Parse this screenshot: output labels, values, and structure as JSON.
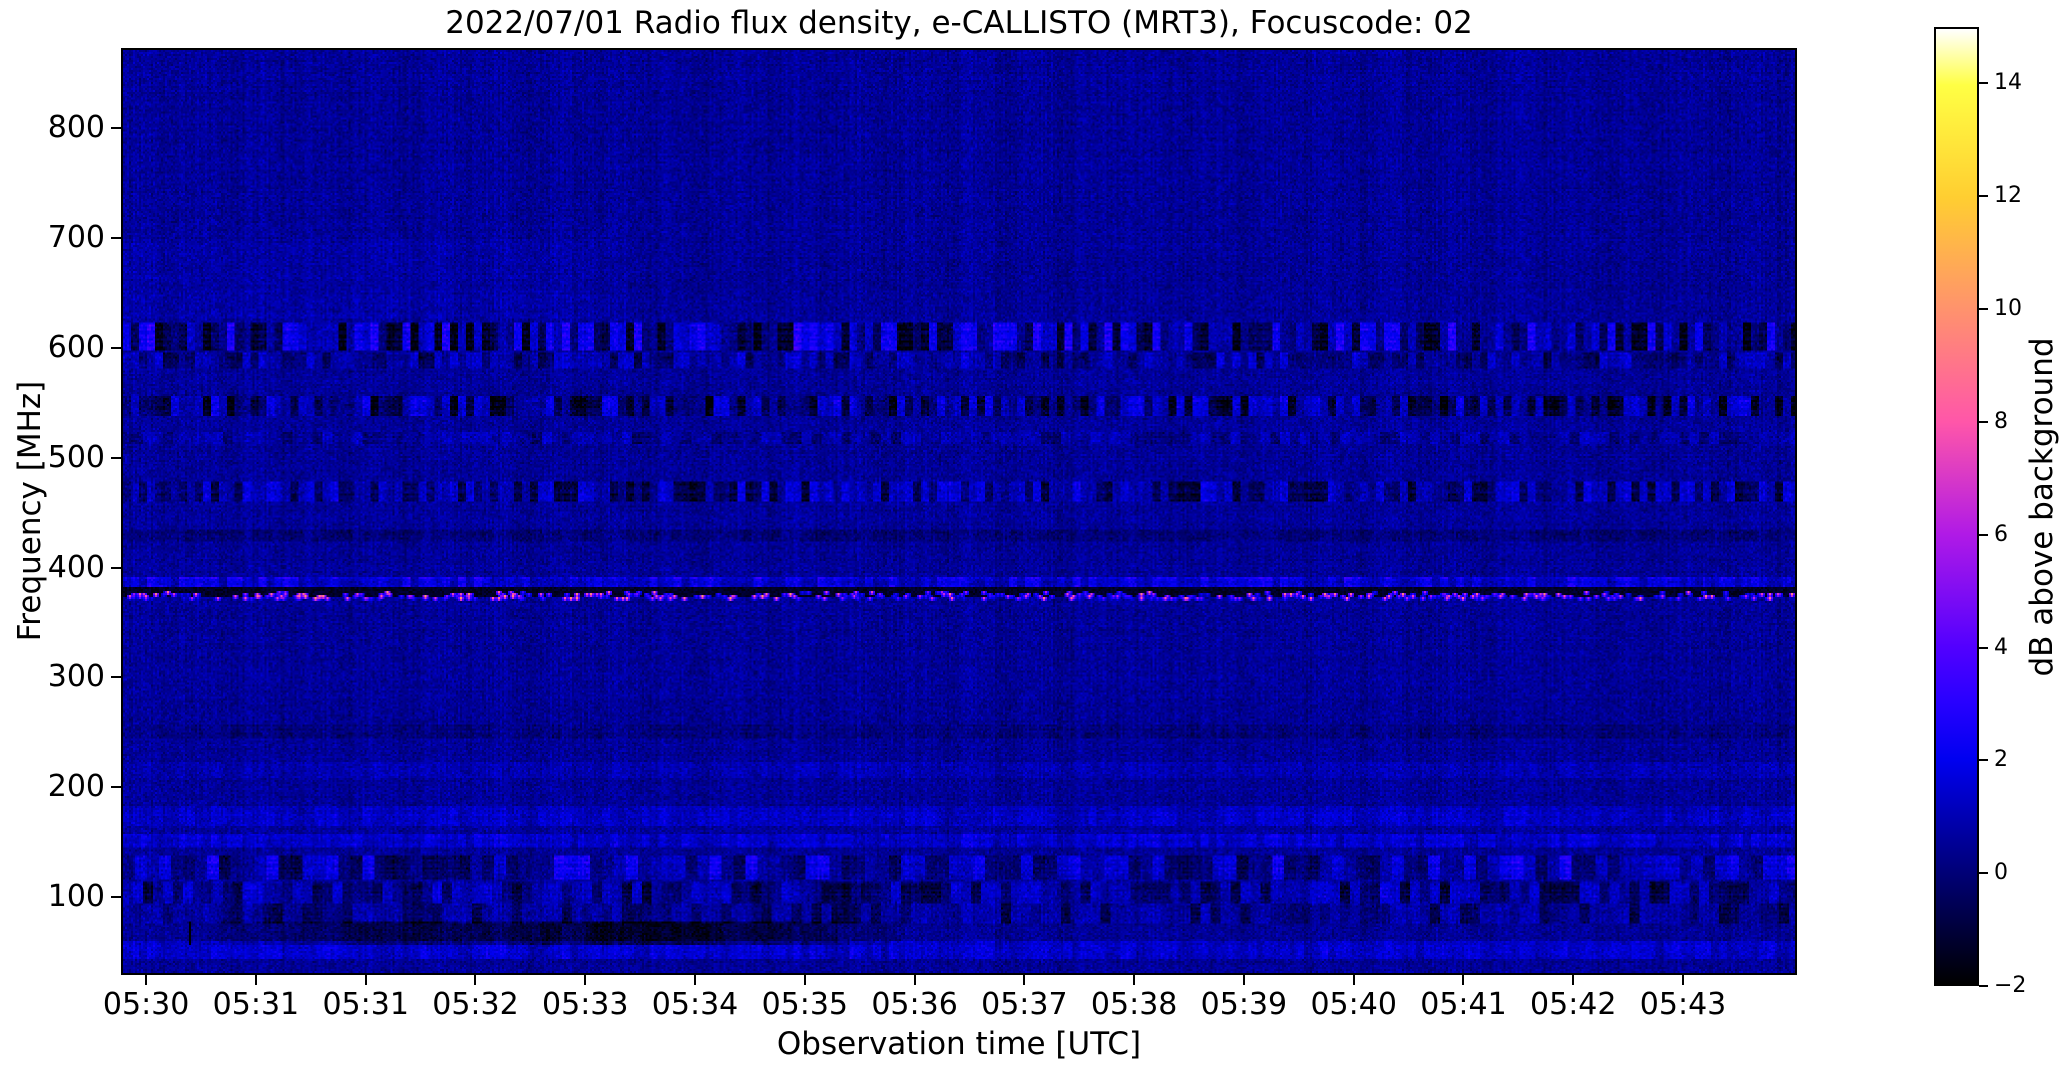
{
  "chart_data": {
    "type": "heatmap",
    "title": "2022/07/01  Radio flux density, e-CALLISTO (MRT3), Focuscode: 02",
    "xlabel": "Observation time [UTC]",
    "ylabel": "Frequency [MHz]",
    "x_tick_labels": [
      "05:30",
      "05:31",
      "05:31",
      "05:32",
      "05:33",
      "05:34",
      "05:35",
      "05:36",
      "05:37",
      "05:38",
      "05:39",
      "05:40",
      "05:41",
      "05:42",
      "05:43"
    ],
    "x_first_tick_frac": 0.015,
    "x_tick_spacing_frac": 0.0655,
    "y_ticks": [
      800,
      700,
      600,
      500,
      400,
      300,
      200,
      100
    ],
    "freq_min": 29,
    "freq_max": 873,
    "grid": false,
    "colorbar": {
      "label": "dB above background",
      "min": -2,
      "max": 15,
      "ticks": [
        {
          "label": "14",
          "value": 14
        },
        {
          "label": "12",
          "value": 12
        },
        {
          "label": "10",
          "value": 10
        },
        {
          "label": "8",
          "value": 8
        },
        {
          "label": "6",
          "value": 6
        },
        {
          "label": "4",
          "value": 4
        },
        {
          "label": "2",
          "value": 2
        },
        {
          "label": "0",
          "value": 0
        },
        {
          "label": "−2",
          "value": -2
        }
      ],
      "colormap_name": "gnuplot2-like",
      "stops": [
        {
          "p": 0.0,
          "c": [
            0,
            0,
            0
          ]
        },
        {
          "p": 0.0588,
          "c": [
            0,
            0,
            60
          ]
        },
        {
          "p": 0.1176,
          "c": [
            0,
            0,
            120
          ]
        },
        {
          "p": 0.1765,
          "c": [
            0,
            0,
            180
          ]
        },
        {
          "p": 0.2353,
          "c": [
            0,
            0,
            240
          ]
        },
        {
          "p": 0.295,
          "c": [
            40,
            0,
            255
          ]
        },
        {
          "p": 0.3529,
          "c": [
            82,
            0,
            255
          ]
        },
        {
          "p": 0.4706,
          "c": [
            176,
            26,
            230
          ]
        },
        {
          "p": 0.5882,
          "c": [
            255,
            86,
            169
          ]
        },
        {
          "p": 0.7059,
          "c": [
            255,
            146,
            109
          ]
        },
        {
          "p": 0.8235,
          "c": [
            255,
            206,
            49
          ]
        },
        {
          "p": 0.9412,
          "c": [
            255,
            255,
            68
          ]
        },
        {
          "p": 1.0,
          "c": [
            255,
            255,
            255
          ]
        }
      ]
    },
    "noise": {
      "mean_db": 0.5,
      "spread_db": 0.85,
      "column_mod_db": 0.25,
      "row_mod_db": 0.22,
      "seed": 20220701
    },
    "bands": [
      {
        "name": "haze-650",
        "f1": 630,
        "f2": 700,
        "type": "bright",
        "amp": 0.22,
        "t1": 0,
        "t2": 0.3,
        "chunk": 6
      },
      {
        "name": "tv-610",
        "f1": 600,
        "f2": 623,
        "type": "segmented",
        "amp": 1.5,
        "dark": 1.5,
        "chunk": 4
      },
      {
        "name": "tv-590",
        "f1": 584,
        "f2": 597,
        "type": "segmented",
        "amp": 0.9,
        "dark": 1.0,
        "chunk": 4
      },
      {
        "name": "tv-548",
        "f1": 540,
        "f2": 557,
        "type": "segmented",
        "amp": 1.1,
        "dark": 1.7,
        "chunk": 4
      },
      {
        "name": "faint-519",
        "f1": 514,
        "f2": 524,
        "type": "segmented",
        "amp": 0.45,
        "dark": 0.5,
        "chunk": 5
      },
      {
        "name": "tv-470",
        "f1": 462,
        "f2": 479,
        "type": "segmented",
        "amp": 0.85,
        "dark": 1.2,
        "chunk": 4
      },
      {
        "name": "dark-430",
        "f1": 425,
        "f2": 434,
        "type": "dark",
        "amp": 0.5,
        "chunk": 5
      },
      {
        "name": "bright-387",
        "f1": 383,
        "f2": 391,
        "type": "brightline",
        "amp": 1.3,
        "chunk": 4
      },
      {
        "name": "lane-378",
        "f1": 374,
        "f2": 382,
        "type": "blacklane",
        "amp": 2.0
      },
      {
        "name": "dark-251",
        "f1": 246,
        "f2": 257,
        "type": "dark",
        "amp": 0.45,
        "chunk": 5
      },
      {
        "name": "bright-215",
        "f1": 209,
        "f2": 221,
        "type": "bright",
        "amp": 0.35,
        "chunk": 5
      },
      {
        "name": "bright-174",
        "f1": 166,
        "f2": 182,
        "type": "bright",
        "amp": 0.6,
        "chunk": 4
      },
      {
        "name": "bright-151",
        "f1": 145,
        "f2": 157,
        "type": "bright",
        "amp": 0.85,
        "chunk": 4
      },
      {
        "name": "aero-127",
        "f1": 117,
        "f2": 137,
        "type": "segmented",
        "amp": 1.25,
        "dark": 0.8,
        "chunk": 6
      },
      {
        "name": "tv-104",
        "f1": 95,
        "f2": 112,
        "type": "segmented",
        "amp": 0.7,
        "dark": 1.1,
        "chunk": 5
      },
      {
        "name": "dark-85",
        "f1": 77,
        "f2": 93,
        "type": "segmented",
        "amp": 0.3,
        "dark": 0.9,
        "chunk": 5
      },
      {
        "name": "bright-51",
        "f1": 44,
        "f2": 58,
        "type": "bright",
        "amp": 0.75,
        "chunk": 4
      }
    ],
    "dark_patch": {
      "t1": 0.04,
      "t2": 0.47,
      "f1": 57,
      "f2": 76,
      "amp": 1.7
    },
    "dot_line": {
      "f1": 371,
      "f2": 377,
      "count": 460,
      "min_db": 2.2,
      "max_db": 9.5
    }
  }
}
